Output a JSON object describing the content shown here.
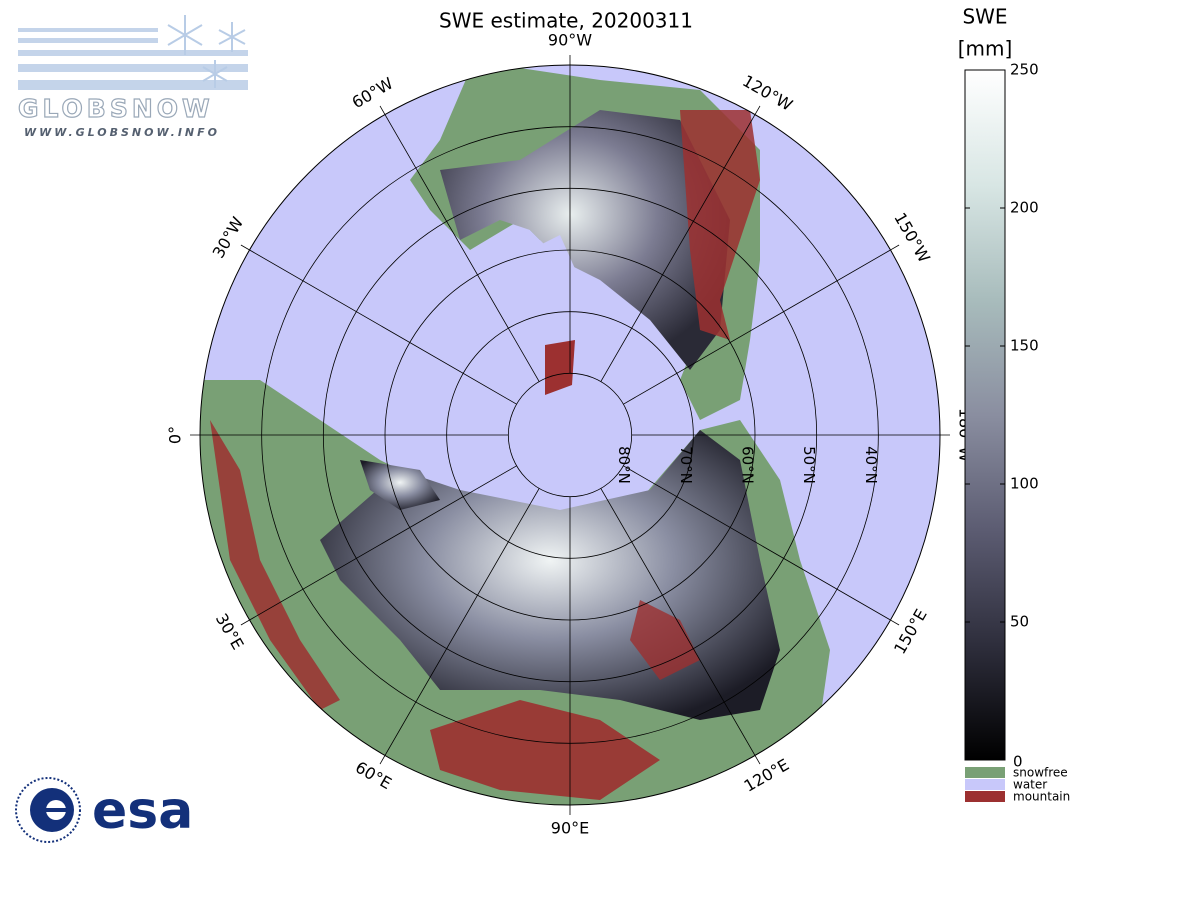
{
  "chart_data": {
    "type": "polar-map",
    "title": "SWE estimate, 20200311",
    "colorbar": {
      "title": "SWE",
      "unit": "[mm]",
      "ylim": [
        0,
        250
      ],
      "yticks": [
        0,
        50,
        100,
        150,
        200,
        250
      ],
      "colormap": [
        "#000000",
        "#2e2e3c",
        "#5c5c72",
        "#8a8ea0",
        "#a8bcbc",
        "#d8e6e4",
        "#ffffff"
      ]
    },
    "legend": [
      {
        "name": "snowfree",
        "color": "#79a075"
      },
      {
        "name": "water",
        "color": "#c8c8fa"
      },
      {
        "name": "mountain",
        "color": "#9c3030"
      }
    ],
    "meridians": [
      {
        "value": 0,
        "label": "0°"
      },
      {
        "value": -30,
        "label": "30°W"
      },
      {
        "value": -60,
        "label": "60°W"
      },
      {
        "value": -90,
        "label": "90°W"
      },
      {
        "value": -120,
        "label": "120°W"
      },
      {
        "value": -150,
        "label": "150°W"
      },
      {
        "value": 180,
        "label": "180°W"
      },
      {
        "value": 150,
        "label": "150°E"
      },
      {
        "value": 120,
        "label": "120°E"
      },
      {
        "value": 90,
        "label": "90°E"
      },
      {
        "value": 60,
        "label": "60°E"
      },
      {
        "value": 30,
        "label": "30°E"
      }
    ],
    "parallels": [
      {
        "value": 80,
        "label": "80°N"
      },
      {
        "value": 70,
        "label": "70°N"
      },
      {
        "value": 60,
        "label": "60°N"
      },
      {
        "value": 50,
        "label": "50°N"
      },
      {
        "value": 40,
        "label": "40°N"
      }
    ],
    "latlim": [
      30,
      90
    ],
    "logos": {
      "globsnow": "GLOBSNOW",
      "globsnow_url": "WWW.GLOBSNOW.INFO",
      "esa": "esa"
    }
  }
}
